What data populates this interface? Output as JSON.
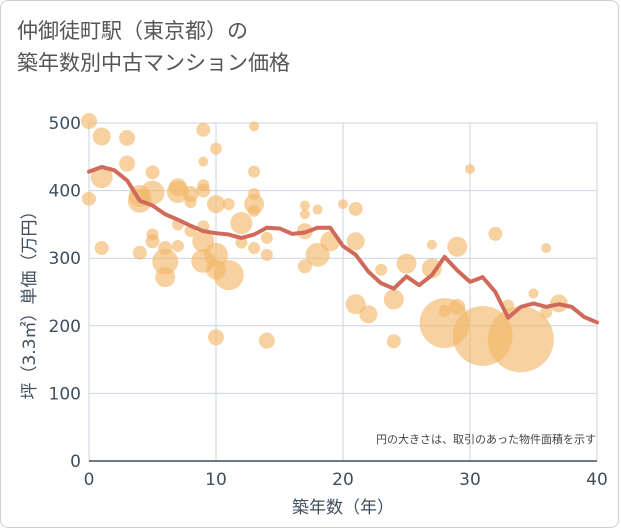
{
  "title_line1": "仲御徒町駅（東京都）の",
  "title_line2": "築年数別中古マンション価格",
  "chart_data": {
    "type": "scatter",
    "xlabel": "築年数（年）",
    "ylabel": "坪（3.3㎡）単価（万円）",
    "xlim": [
      0,
      40
    ],
    "ylim": [
      0,
      500
    ],
    "x_ticks": [
      0,
      10,
      20,
      30,
      40
    ],
    "y_ticks": [
      0,
      100,
      200,
      300,
      400,
      500
    ],
    "grid": true,
    "note": "円の大きさは、取引のあった物件面積を示す",
    "colors": {
      "bubble": "#f2b96b",
      "line": "#d06a5a",
      "grid": "#c9d3dd"
    },
    "trend_line": {
      "x": [
        0,
        1,
        2,
        3,
        4,
        5,
        6,
        7,
        8,
        9,
        10,
        11,
        12,
        13,
        14,
        15,
        16,
        17,
        18,
        19,
        20,
        21,
        22,
        23,
        24,
        25,
        26,
        27,
        28,
        29,
        30,
        31,
        32,
        33,
        34,
        35,
        36,
        37,
        38,
        39,
        40
      ],
      "y": [
        428,
        435,
        430,
        415,
        385,
        378,
        365,
        357,
        348,
        340,
        337,
        335,
        330,
        335,
        345,
        344,
        336,
        338,
        345,
        345,
        318,
        305,
        280,
        263,
        255,
        273,
        260,
        275,
        302,
        282,
        265,
        272,
        250,
        212,
        228,
        233,
        228,
        232,
        228,
        213,
        205
      ]
    },
    "bubbles": [
      {
        "x": 0,
        "y": 503,
        "s": 8
      },
      {
        "x": 0,
        "y": 388,
        "s": 7
      },
      {
        "x": 1,
        "y": 480,
        "s": 9
      },
      {
        "x": 1,
        "y": 420,
        "s": 11
      },
      {
        "x": 1,
        "y": 315,
        "s": 7
      },
      {
        "x": 3,
        "y": 478,
        "s": 8
      },
      {
        "x": 3,
        "y": 440,
        "s": 8
      },
      {
        "x": 4,
        "y": 392,
        "s": 11
      },
      {
        "x": 4,
        "y": 385,
        "s": 12
      },
      {
        "x": 4,
        "y": 308,
        "s": 7
      },
      {
        "x": 5,
        "y": 427,
        "s": 7
      },
      {
        "x": 5,
        "y": 397,
        "s": 12
      },
      {
        "x": 5,
        "y": 335,
        "s": 6
      },
      {
        "x": 5,
        "y": 325,
        "s": 7
      },
      {
        "x": 6,
        "y": 315,
        "s": 7
      },
      {
        "x": 6,
        "y": 295,
        "s": 13
      },
      {
        "x": 6,
        "y": 272,
        "s": 10
      },
      {
        "x": 7,
        "y": 405,
        "s": 9
      },
      {
        "x": 7,
        "y": 398,
        "s": 11
      },
      {
        "x": 7,
        "y": 350,
        "s": 6
      },
      {
        "x": 7,
        "y": 318,
        "s": 6
      },
      {
        "x": 8,
        "y": 395,
        "s": 8
      },
      {
        "x": 8,
        "y": 383,
        "s": 6
      },
      {
        "x": 8,
        "y": 340,
        "s": 6
      },
      {
        "x": 9,
        "y": 490,
        "s": 7
      },
      {
        "x": 9,
        "y": 443,
        "s": 5
      },
      {
        "x": 9,
        "y": 408,
        "s": 6
      },
      {
        "x": 9,
        "y": 400,
        "s": 7
      },
      {
        "x": 9,
        "y": 347,
        "s": 6
      },
      {
        "x": 9,
        "y": 325,
        "s": 11
      },
      {
        "x": 9,
        "y": 296,
        "s": 12
      },
      {
        "x": 10,
        "y": 462,
        "s": 6
      },
      {
        "x": 10,
        "y": 380,
        "s": 9
      },
      {
        "x": 10,
        "y": 305,
        "s": 12
      },
      {
        "x": 10,
        "y": 283,
        "s": 10
      },
      {
        "x": 10,
        "y": 183,
        "s": 8
      },
      {
        "x": 11,
        "y": 380,
        "s": 6
      },
      {
        "x": 11,
        "y": 275,
        "s": 15
      },
      {
        "x": 12,
        "y": 352,
        "s": 11
      },
      {
        "x": 12,
        "y": 323,
        "s": 6
      },
      {
        "x": 13,
        "y": 495,
        "s": 5
      },
      {
        "x": 13,
        "y": 428,
        "s": 6
      },
      {
        "x": 13,
        "y": 395,
        "s": 6
      },
      {
        "x": 13,
        "y": 380,
        "s": 10
      },
      {
        "x": 13,
        "y": 370,
        "s": 6
      },
      {
        "x": 13,
        "y": 315,
        "s": 6
      },
      {
        "x": 14,
        "y": 330,
        "s": 6
      },
      {
        "x": 14,
        "y": 305,
        "s": 6
      },
      {
        "x": 14,
        "y": 178,
        "s": 8
      },
      {
        "x": 17,
        "y": 378,
        "s": 5
      },
      {
        "x": 17,
        "y": 365,
        "s": 5
      },
      {
        "x": 17,
        "y": 340,
        "s": 8
      },
      {
        "x": 17,
        "y": 288,
        "s": 7
      },
      {
        "x": 18,
        "y": 372,
        "s": 5
      },
      {
        "x": 18,
        "y": 305,
        "s": 12
      },
      {
        "x": 19,
        "y": 325,
        "s": 10
      },
      {
        "x": 20,
        "y": 380,
        "s": 5
      },
      {
        "x": 21,
        "y": 373,
        "s": 7
      },
      {
        "x": 21,
        "y": 325,
        "s": 9
      },
      {
        "x": 21,
        "y": 232,
        "s": 10
      },
      {
        "x": 22,
        "y": 217,
        "s": 9
      },
      {
        "x": 23,
        "y": 283,
        "s": 6
      },
      {
        "x": 24,
        "y": 239,
        "s": 10
      },
      {
        "x": 24,
        "y": 177,
        "s": 7
      },
      {
        "x": 25,
        "y": 292,
        "s": 10
      },
      {
        "x": 27,
        "y": 320,
        "s": 5
      },
      {
        "x": 27,
        "y": 285,
        "s": 10
      },
      {
        "x": 28,
        "y": 222,
        "s": 6
      },
      {
        "x": 28,
        "y": 204,
        "s": 25
      },
      {
        "x": 29,
        "y": 317,
        "s": 10
      },
      {
        "x": 29,
        "y": 228,
        "s": 8
      },
      {
        "x": 30,
        "y": 432,
        "s": 5
      },
      {
        "x": 31,
        "y": 185,
        "s": 30
      },
      {
        "x": 32,
        "y": 336,
        "s": 7
      },
      {
        "x": 33,
        "y": 230,
        "s": 6
      },
      {
        "x": 34,
        "y": 180,
        "s": 33
      },
      {
        "x": 35,
        "y": 248,
        "s": 5
      },
      {
        "x": 36,
        "y": 315,
        "s": 5
      },
      {
        "x": 36,
        "y": 220,
        "s": 6
      },
      {
        "x": 37,
        "y": 233,
        "s": 9
      }
    ]
  }
}
